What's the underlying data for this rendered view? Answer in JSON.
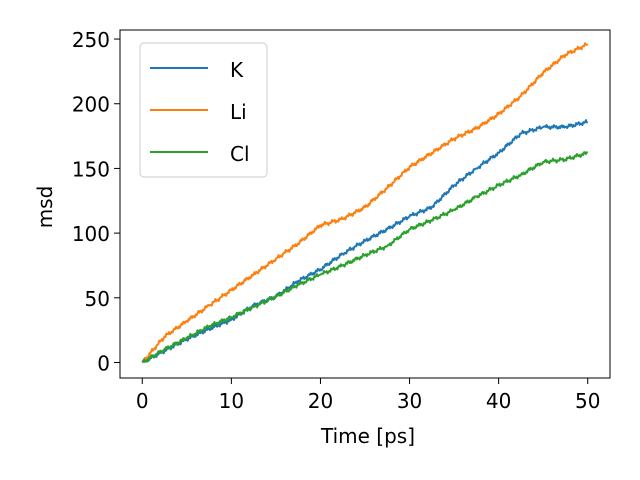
{
  "chart_data": {
    "type": "line",
    "title": "",
    "xlabel": "Time [ps]",
    "ylabel": "msd",
    "xlim": [
      -2.5,
      52.5
    ],
    "ylim": [
      -12,
      257
    ],
    "xticks": [
      0,
      10,
      20,
      30,
      40,
      50
    ],
    "yticks": [
      0,
      50,
      100,
      150,
      200,
      250
    ],
    "grid": false,
    "legend": "top-left",
    "x": [
      0,
      2.5,
      5,
      7.5,
      10,
      12.5,
      15,
      17.5,
      20,
      22.5,
      25,
      27.5,
      30,
      32.5,
      35,
      37.5,
      40,
      42.5,
      45,
      47.5,
      50
    ],
    "series": [
      {
        "name": "K",
        "color": "#1f77b4",
        "values": [
          0,
          9,
          18,
          26,
          33,
          44,
          51,
          63,
          72,
          84,
          94,
          103,
          113,
          120,
          137,
          150,
          162,
          177,
          182,
          182,
          186
        ]
      },
      {
        "name": "Li",
        "color": "#ff7f0e",
        "values": [
          0,
          20,
          32,
          44,
          56,
          68,
          80,
          92,
          106,
          111,
          120,
          135,
          151,
          162,
          173,
          181,
          192,
          206,
          224,
          238,
          246
        ]
      },
      {
        "name": "Cl",
        "color": "#2ca02c",
        "values": [
          0,
          10,
          19,
          28,
          35,
          43,
          51,
          60,
          68,
          75,
          83,
          90,
          103,
          110,
          118,
          128,
          137,
          145,
          155,
          157,
          162
        ]
      }
    ]
  }
}
